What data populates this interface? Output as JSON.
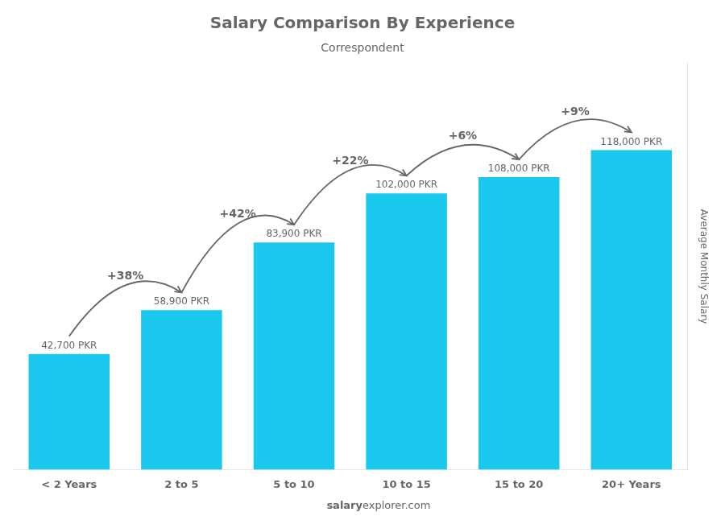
{
  "chart_data": {
    "type": "bar",
    "title": "Salary Comparison By Experience",
    "subtitle": "Correspondent",
    "categories": [
      "< 2 Years",
      "2 to 5",
      "5 to 10",
      "10 to 15",
      "15 to 20",
      "20+ Years"
    ],
    "values": [
      42700,
      58900,
      83900,
      102000,
      108000,
      118000
    ],
    "value_labels": [
      "42,700 PKR",
      "58,900 PKR",
      "83,900 PKR",
      "102,000 PKR",
      "108,000 PKR",
      "118,000 PKR"
    ],
    "data_labels": true,
    "color": "#1ac8ed",
    "ylabel": "Average Monthly Salary",
    "ylim": [
      0,
      150000
    ],
    "tick_labels": "x",
    "grid": false,
    "annotations": [
      {
        "text": "+38%",
        "from": "< 2 Years",
        "to": "2 to 5"
      },
      {
        "text": "+42%",
        "from": "2 to 5",
        "to": "5 to 10"
      },
      {
        "text": "+22%",
        "from": "5 to 10",
        "to": "10 to 15"
      },
      {
        "text": "+6%",
        "from": "10 to 15",
        "to": "15 to 20"
      },
      {
        "text": "+9%",
        "from": "15 to 20",
        "to": "20+ Years"
      }
    ],
    "watermark": [
      "salary",
      "explorer.com"
    ]
  }
}
